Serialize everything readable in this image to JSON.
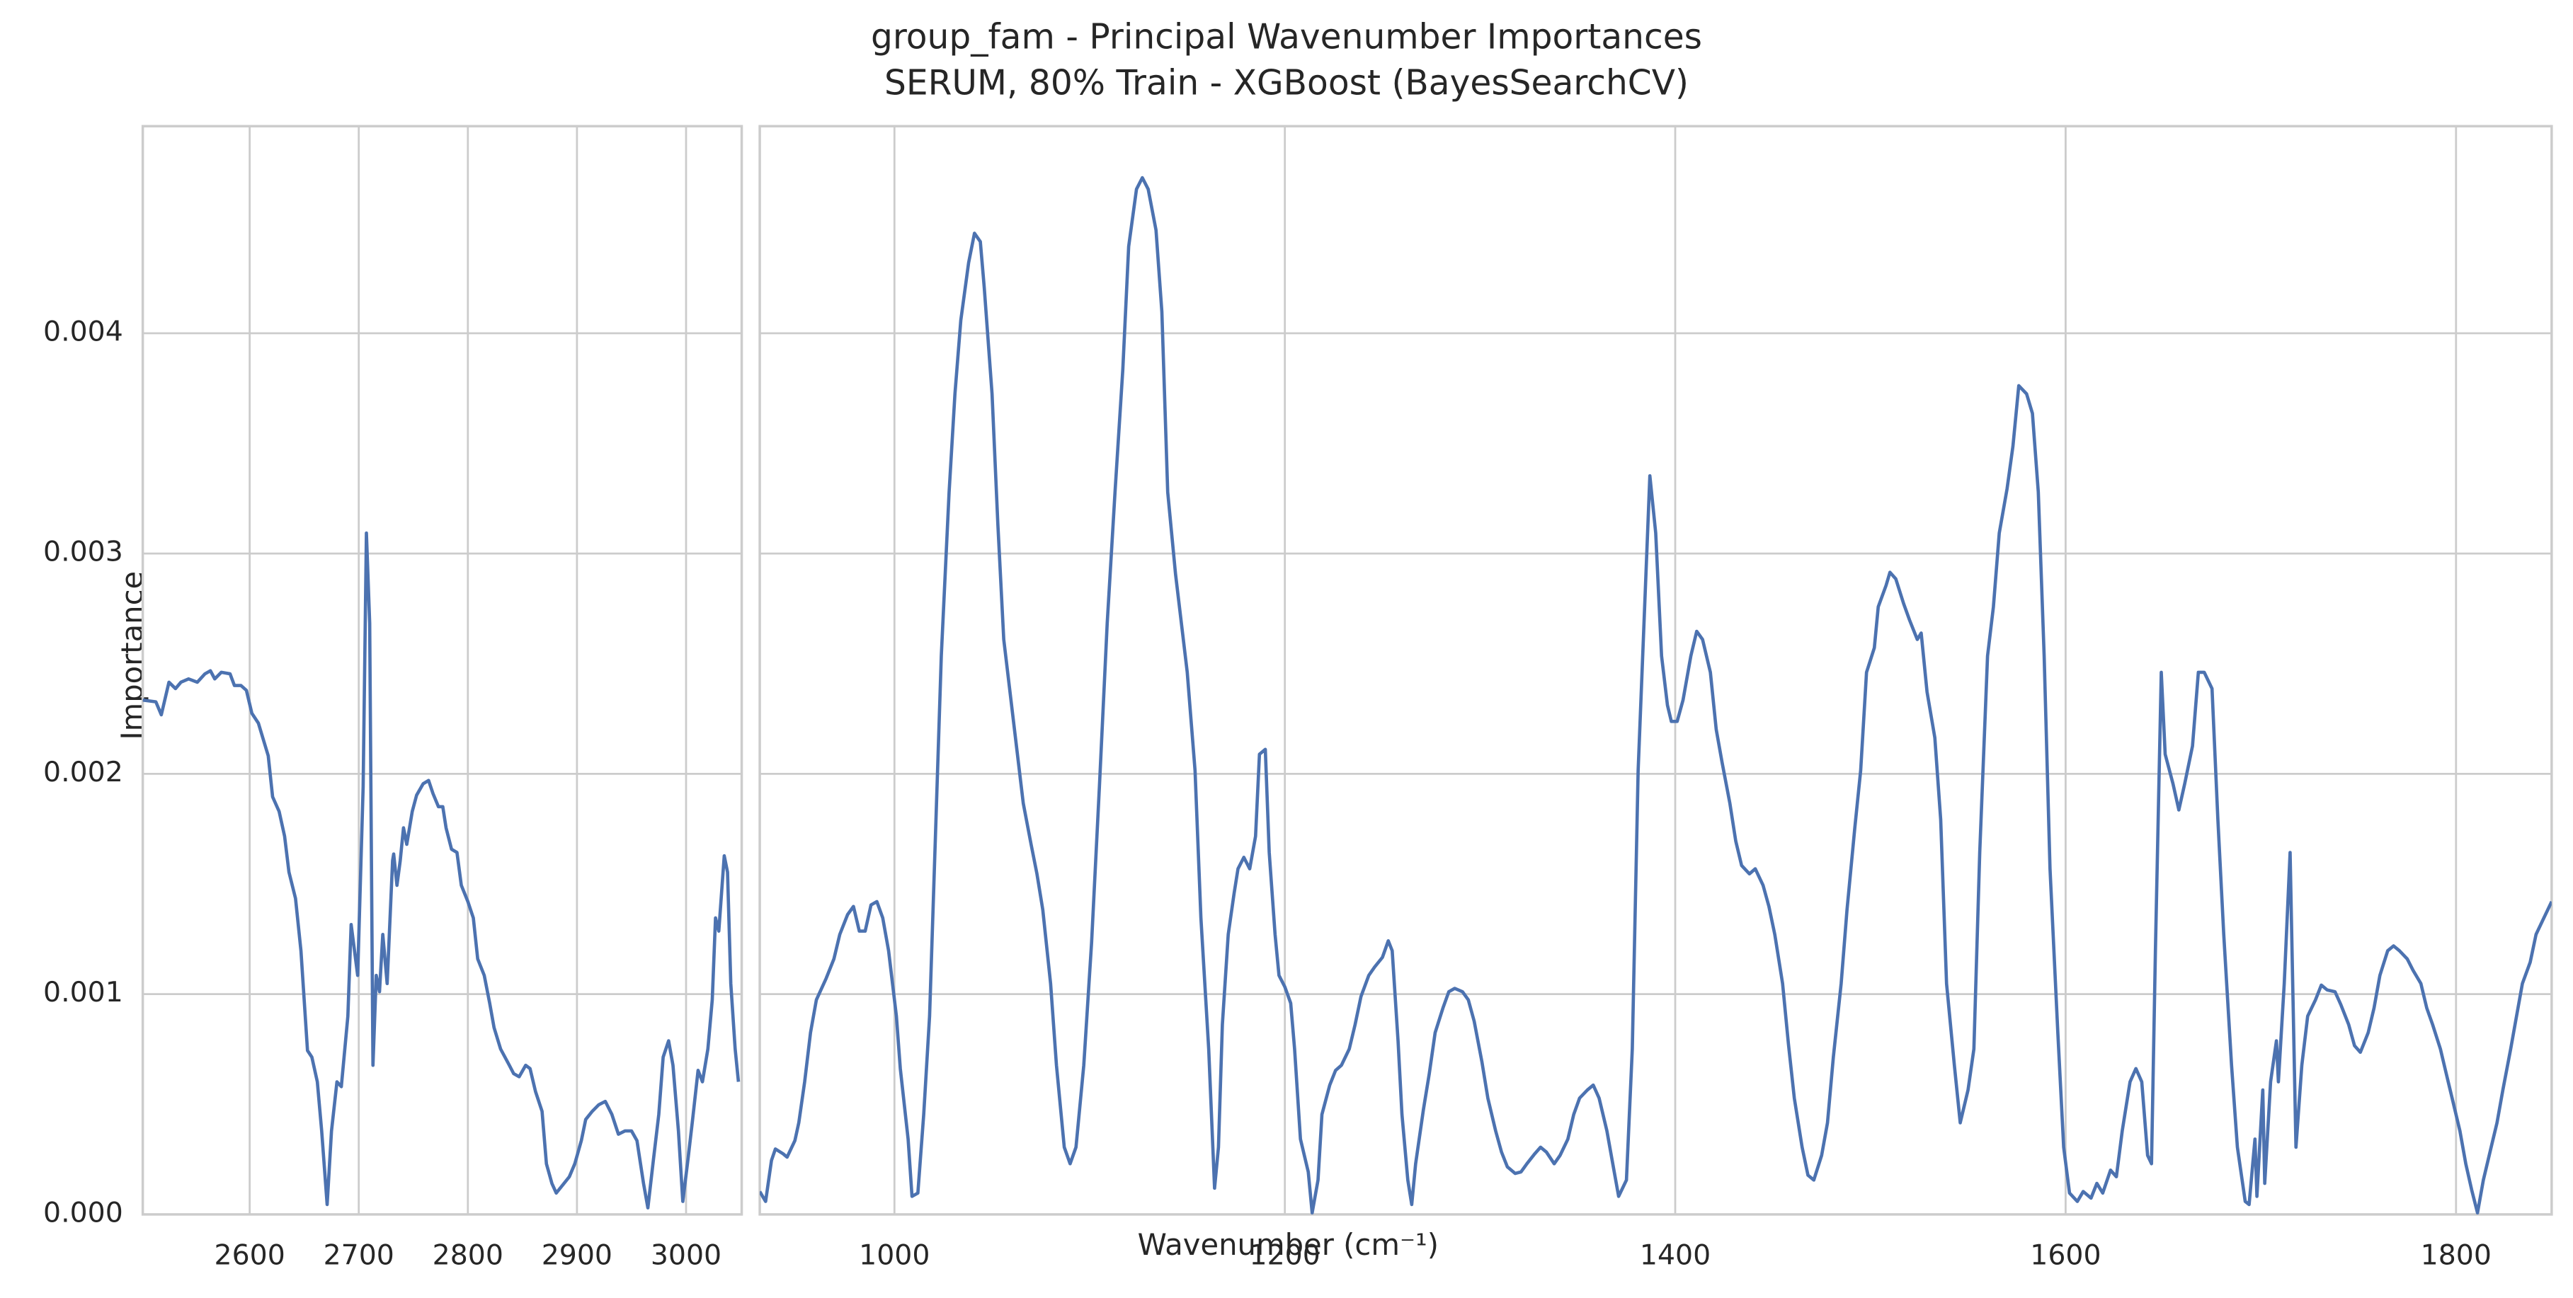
{
  "chart_data": [
    {
      "type": "line",
      "title": "group_fam - Principal Wavenumber Importances",
      "subtitle": "SERUM, 80% Train - XGBoost (BayesSearchCV)",
      "xlabel": "Wavenumber (cm⁻¹)",
      "ylabel": "Importance",
      "color": "#4c72b0",
      "grid": true,
      "xlim": [
        2502,
        3051
      ],
      "xticks": [
        2600,
        2700,
        2800,
        2900,
        3000
      ],
      "ylim": [
        0,
        0.00494
      ],
      "yticks": [
        {
          "value": 0,
          "label": "0.000"
        },
        {
          "value": 0.001,
          "label": "0.001"
        },
        {
          "value": 0.002,
          "label": "0.002"
        },
        {
          "value": 0.003,
          "label": "0.003"
        },
        {
          "value": 0.004,
          "label": "0.004"
        }
      ],
      "x": [
        2502,
        2514,
        2519,
        2526,
        2532,
        2537,
        2544,
        2552,
        2559,
        2564,
        2568,
        2574,
        2582,
        2586,
        2592,
        2597,
        2602,
        2608,
        2612,
        2617,
        2621,
        2627,
        2632,
        2636,
        2642,
        2647,
        2653,
        2657,
        2662,
        2666,
        2671,
        2675,
        2680,
        2684,
        2690,
        2693,
        2699,
        2704,
        2707,
        2710,
        2713,
        2716,
        2719,
        2722,
        2726,
        2731,
        2732,
        2735,
        2738,
        2741,
        2744,
        2749,
        2753,
        2759,
        2764,
        2768,
        2773,
        2777,
        2780,
        2785,
        2790,
        2794,
        2800,
        2805,
        2809,
        2815,
        2820,
        2824,
        2830,
        2838,
        2842,
        2847,
        2853,
        2857,
        2862,
        2868,
        2872,
        2877,
        2881,
        2887,
        2893,
        2898,
        2904,
        2908,
        2914,
        2920,
        2926,
        2932,
        2938,
        2944,
        2950,
        2955,
        2961,
        2965,
        2970,
        2975,
        2979,
        2984,
        2988,
        2993,
        2997,
        3002,
        3006,
        3011,
        3015,
        3020,
        3024,
        3027,
        3030,
        3035,
        3038,
        3041,
        3045,
        3048
      ],
      "values": [
        0.002335,
        0.002327,
        0.002268,
        0.002416,
        0.002387,
        0.002416,
        0.002431,
        0.002416,
        0.002454,
        0.002468,
        0.002431,
        0.002461,
        0.002454,
        0.002401,
        0.002401,
        0.002379,
        0.002275,
        0.00223,
        0.002164,
        0.002082,
        0.001896,
        0.001829,
        0.001717,
        0.001554,
        0.001435,
        0.001197,
        0.000744,
        0.000714,
        0.000602,
        0.000379,
        4.5e-05,
        0.000379,
        0.000602,
        0.00058,
        0.0009,
        0.001316,
        0.001085,
        0.001941,
        0.003093,
        0.002684,
        0.000677,
        0.001085,
        0.001011,
        0.001271,
        0.001048,
        0.001606,
        0.001636,
        0.001494,
        0.001606,
        0.001755,
        0.00168,
        0.001829,
        0.001903,
        0.001955,
        0.00197,
        0.001911,
        0.001851,
        0.001851,
        0.001755,
        0.001658,
        0.001643,
        0.001494,
        0.00142,
        0.001346,
        0.00116,
        0.001085,
        0.000959,
        0.000848,
        0.000751,
        0.000677,
        0.000639,
        0.000625,
        0.000677,
        0.000662,
        0.000558,
        0.000468,
        0.00023,
        0.000141,
        9.7e-05,
        0.000134,
        0.000171,
        0.00023,
        0.000335,
        0.000431,
        0.000468,
        0.000498,
        0.000513,
        0.000454,
        0.000364,
        0.000379,
        0.000379,
        0.000335,
        0.000141,
        3e-05,
        0.000245,
        0.000454,
        0.000714,
        0.000788,
        0.000677,
        0.000379,
        5.9e-05,
        0.00026,
        0.000431,
        0.000654,
        0.000602,
        0.000751,
        0.000974,
        0.001346,
        0.001286,
        0.001628,
        0.001554,
        0.001048,
        0.000751,
        0.000602
      ]
    },
    {
      "type": "line",
      "color": "#4c72b0",
      "grid": true,
      "xlim": [
        931,
        1849
      ],
      "xticks": [
        1000,
        1200,
        1400,
        1600,
        1800
      ],
      "ylim": [
        0,
        0.00494
      ],
      "yticks": [
        0,
        0.001,
        0.002,
        0.003,
        0.004
      ],
      "x": [
        931,
        934,
        937,
        939,
        943,
        945,
        949,
        951,
        954,
        957,
        960,
        965,
        969,
        972,
        976,
        979,
        982,
        985,
        988,
        991,
        994,
        997,
        1001,
        1003,
        1007,
        1009,
        1012,
        1015,
        1018,
        1021,
        1024,
        1028,
        1031,
        1034,
        1038,
        1041,
        1044,
        1046,
        1050,
        1053,
        1056,
        1060,
        1063,
        1066,
        1070,
        1073,
        1076,
        1080,
        1083,
        1087,
        1090,
        1093,
        1097,
        1101,
        1105,
        1109,
        1113,
        1117,
        1120,
        1124,
        1127,
        1130,
        1134,
        1137,
        1140,
        1144,
        1147,
        1150,
        1154,
        1157,
        1161,
        1164,
        1166,
        1168,
        1171,
        1174,
        1176,
        1179,
        1182,
        1185,
        1187,
        1190,
        1192,
        1195,
        1197,
        1200,
        1203,
        1205,
        1208,
        1212,
        1214,
        1217,
        1219,
        1223,
        1226,
        1229,
        1233,
        1236,
        1239,
        1243,
        1246,
        1250,
        1253,
        1255,
        1258,
        1260,
        1263,
        1265,
        1267,
        1271,
        1274,
        1277,
        1281,
        1284,
        1287,
        1291,
        1294,
        1297,
        1301,
        1304,
        1308,
        1311,
        1314,
        1318,
        1321,
        1324,
        1328,
        1331,
        1334,
        1338,
        1341,
        1345,
        1348,
        1351,
        1355,
        1358,
        1361,
        1365,
        1368,
        1371,
        1375,
        1378,
        1381,
        1385,
        1387,
        1390,
        1393,
        1396,
        1398,
        1401,
        1404,
        1408,
        1411,
        1414,
        1418,
        1421,
        1424,
        1428,
        1431,
        1434,
        1438,
        1441,
        1445,
        1448,
        1451,
        1455,
        1458,
        1461,
        1465,
        1468,
        1471,
        1475,
        1478,
        1481,
        1485,
        1488,
        1492,
        1495,
        1498,
        1502,
        1504,
        1508,
        1510,
        1513,
        1517,
        1520,
        1524,
        1526,
        1529,
        1533,
        1536,
        1539,
        1543,
        1546,
        1550,
        1553,
        1556,
        1560,
        1563,
        1566,
        1570,
        1573,
        1576,
        1580,
        1583,
        1586,
        1589,
        1592,
        1596,
        1599,
        1602,
        1606,
        1609,
        1613,
        1616,
        1619,
        1623,
        1626,
        1629,
        1633,
        1636,
        1639,
        1642,
        1644,
        1646,
        1649,
        1651,
        1655,
        1658,
        1661,
        1665,
        1668,
        1671,
        1675,
        1678,
        1681,
        1685,
        1688,
        1692,
        1694,
        1697,
        1698,
        1701,
        1702,
        1705,
        1708,
        1709,
        1712,
        1715,
        1718,
        1721,
        1724,
        1728,
        1731,
        1734,
        1738,
        1741,
        1745,
        1748,
        1751,
        1755,
        1758,
        1761,
        1765,
        1768,
        1771,
        1775,
        1778,
        1782,
        1785,
        1788,
        1792,
        1795,
        1798,
        1802,
        1805,
        1808,
        1811,
        1814,
        1818,
        1821,
        1824,
        1828,
        1831,
        1834,
        1838,
        1841,
        1845,
        1849
      ],
      "values": [
        0.000104,
        5.9e-05,
        0.000245,
        0.000297,
        0.000275,
        0.00026,
        0.000335,
        0.000416,
        0.000602,
        0.000825,
        0.000974,
        0.001071,
        0.00116,
        0.001271,
        0.001361,
        0.001398,
        0.001286,
        0.001286,
        0.001405,
        0.00142,
        0.001346,
        0.001197,
        0.0009,
        0.000662,
        0.000342,
        8.2e-05,
        9.7e-05,
        0.000454,
        0.0009,
        0.001717,
        0.002535,
        0.003279,
        0.003725,
        0.004059,
        0.00432,
        0.004454,
        0.004416,
        0.004208,
        0.003725,
        0.00313,
        0.00261,
        0.002312,
        0.002089,
        0.001866,
        0.00168,
        0.001546,
        0.001383,
        0.001048,
        0.000677,
        0.000305,
        0.00023,
        0.000305,
        0.000677,
        0.001234,
        0.001941,
        0.002684,
        0.003279,
        0.003836,
        0.004394,
        0.004654,
        0.004706,
        0.004654,
        0.004468,
        0.004097,
        0.003279,
        0.002907,
        0.002684,
        0.002461,
        0.002015,
        0.001346,
        0.000751,
        0.000119,
        0.000305,
        0.000862,
        0.001271,
        0.001457,
        0.001569,
        0.001621,
        0.001569,
        0.001717,
        0.002089,
        0.002111,
        0.001643,
        0.001271,
        0.001085,
        0.001033,
        0.000959,
        0.000751,
        0.000342,
        0.000193,
        7e-06,
        0.000156,
        0.000454,
        0.000587,
        0.000654,
        0.000677,
        0.000751,
        0.000862,
        0.000989,
        0.001085,
        0.001123,
        0.001167,
        0.001242,
        0.001197,
        0.000788,
        0.000454,
        0.000156,
        4.5e-05,
        0.00023,
        0.000476,
        0.000639,
        0.000825,
        0.000937,
        0.001011,
        0.001026,
        0.001011,
        0.000974,
        0.000877,
        0.000691,
        0.000528,
        0.000379,
        0.000283,
        0.000216,
        0.000186,
        0.000193,
        0.00023,
        0.000275,
        0.000305,
        0.000283,
        0.00023,
        0.000268,
        0.000342,
        0.000454,
        0.000528,
        0.000565,
        0.000587,
        0.000528,
        0.000379,
        0.00023,
        8.2e-05,
        0.000156,
        0.000751,
        0.002015,
        0.002907,
        0.003353,
        0.003093,
        0.002535,
        0.002312,
        0.002238,
        0.002238,
        0.002335,
        0.002535,
        0.002647,
        0.00261,
        0.002461,
        0.002201,
        0.002052,
        0.001866,
        0.001695,
        0.001584,
        0.001546,
        0.001569,
        0.001494,
        0.001398,
        0.001271,
        0.001048,
        0.000773,
        0.000528,
        0.000305,
        0.000178,
        0.000156,
        0.000268,
        0.000416,
        0.000714,
        0.001048,
        0.001383,
        0.001755,
        0.002015,
        0.002461,
        0.002572,
        0.002758,
        0.002855,
        0.002915,
        0.002885,
        0.002773,
        0.002699,
        0.00261,
        0.002639,
        0.002372,
        0.002164,
        0.001792,
        0.001048,
        0.000677,
        0.000416,
        0.000565,
        0.000751,
        0.001643,
        0.002535,
        0.002758,
        0.003093,
        0.003294,
        0.003487,
        0.003762,
        0.003725,
        0.003636,
        0.003279,
        0.002535,
        0.001569,
        0.000825,
        0.000305,
        9.7e-05,
        5.9e-05,
        0.000104,
        7.4e-05,
        0.000141,
        9.7e-05,
        0.000201,
        0.000171,
        0.000379,
        0.000602,
        0.000662,
        0.000602,
        0.000268,
        0.00023,
        0.001197,
        0.002461,
        0.002089,
        0.001955,
        0.001836,
        0.001955,
        0.002126,
        0.002461,
        0.002461,
        0.002387,
        0.001792,
        0.001271,
        0.000677,
        0.000305,
        5.9e-05,
        4.5e-05,
        0.000342,
        8.2e-05,
        0.000565,
        0.000141,
        0.000602,
        0.000788,
        0.000602,
        0.001048,
        0.001643,
        0.000305,
        0.000677,
        0.0009,
        0.000974,
        0.001041,
        0.001019,
        0.001011,
        0.000952,
        0.000862,
        0.000766,
        0.000736,
        0.000825,
        0.000937,
        0.001085,
        0.001197,
        0.001219,
        0.001197,
        0.00116,
        0.001108,
        0.001048,
        0.000937,
        0.000862,
        0.000751,
        0.000639,
        0.000528,
        0.000379,
        0.00023,
        0.000112,
        7e-06,
        0.000156,
        0.000305,
        0.000416,
        0.000565,
        0.000751,
        0.0009,
        0.001048,
        0.001145,
        0.001271,
        0.001346,
        0.00142
      ]
    }
  ]
}
